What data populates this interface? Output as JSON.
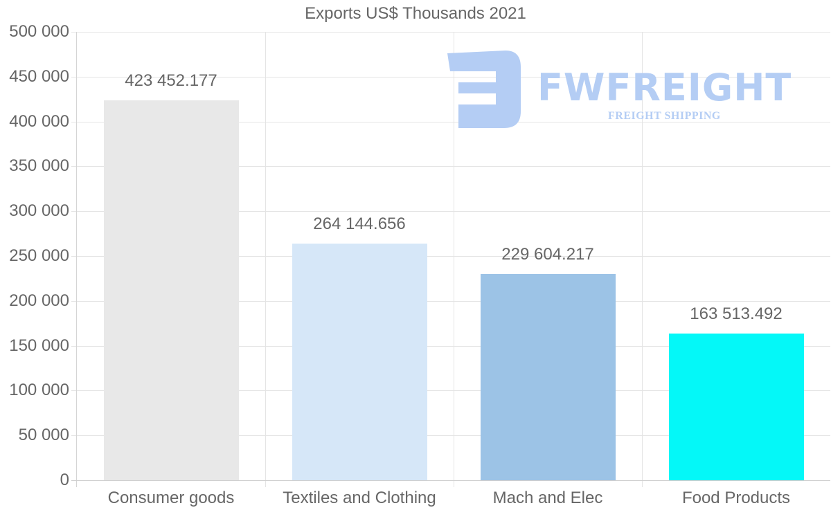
{
  "chart_data": {
    "type": "bar",
    "title": "Exports US$ Thousands 2021",
    "xlabel": "",
    "ylabel": "",
    "categories": [
      "Consumer goods",
      "Textiles and Clothing",
      "Mach and Elec",
      "Food Products"
    ],
    "values": [
      423452.177,
      264144.656,
      229604.217,
      163513.492
    ],
    "value_labels": [
      "423 452.177",
      "264 144.656",
      "229 604.217",
      "163 513.492"
    ],
    "colors": [
      "#e8e8e8",
      "#d6e7f8",
      "#9cc3e6",
      "#04f8f8"
    ],
    "ylim": [
      0,
      500000
    ],
    "yticks": [
      0,
      50000,
      100000,
      150000,
      200000,
      250000,
      300000,
      350000,
      400000,
      450000,
      500000
    ],
    "ytick_labels": [
      "0",
      "50 000",
      "100 000",
      "150 000",
      "200 000",
      "250 000",
      "300 000",
      "350 000",
      "400 000",
      "450 000",
      "500 000"
    ],
    "grid": true,
    "legend": "none"
  },
  "watermark": {
    "brand": "FWFREIGHT",
    "tagline": "FREIGHT SHIPPING",
    "color": "#b4cdf4"
  }
}
